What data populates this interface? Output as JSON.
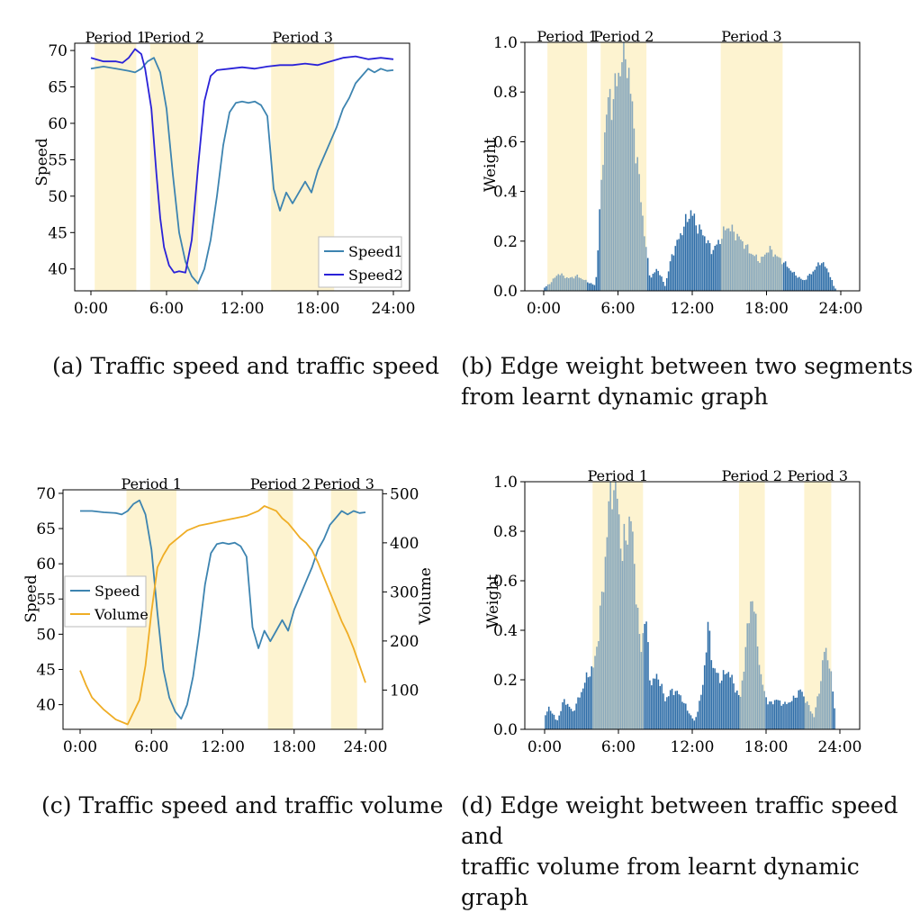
{
  "captions": {
    "a": {
      "label": "(a)",
      "text": "Traffic speed and traffic speed"
    },
    "b": {
      "label": "(b)",
      "line1": "Edge weight between two segments",
      "line2": "from learnt dynamic graph"
    },
    "c": {
      "label": "(c)",
      "text": "Traffic speed and traffic volume"
    },
    "d": {
      "label": "(d)",
      "line1": "Edge weight between traffic speed and",
      "line2": "traffic volume from learnt dynamic graph"
    }
  },
  "colors": {
    "period_band": "#fdf3d0",
    "speed1": "#3d84b0",
    "speed2": "#2a22d8",
    "volume": "#efad25",
    "bar_dark": "#2f6ea8",
    "bar_light": "#88a8bc"
  },
  "chart_data": [
    {
      "id": "a",
      "type": "line",
      "ylabel": "Speed",
      "xlabel": "",
      "xlim": [
        0,
        24
      ],
      "ylim": [
        37,
        71
      ],
      "xticks": [
        "0:00",
        "6:00",
        "12:00",
        "18:00",
        "24:00"
      ],
      "yticks": [
        40,
        45,
        50,
        55,
        60,
        65,
        70
      ],
      "legend_position": "bottom-right",
      "periods": [
        {
          "label": "Period 1",
          "start": 0.3,
          "end": 3.6
        },
        {
          "label": "Period 2",
          "start": 4.7,
          "end": 8.5
        },
        {
          "label": "Period 3",
          "start": 14.3,
          "end": 19.3
        }
      ],
      "series": [
        {
          "name": "Speed1",
          "color_key": "speed1",
          "x": [
            0,
            1,
            2,
            3,
            3.5,
            4,
            4.5,
            5,
            5.5,
            6,
            6.5,
            7,
            7.5,
            8,
            8.5,
            9,
            9.5,
            10,
            10.5,
            11,
            11.5,
            12,
            12.5,
            13,
            13.5,
            14,
            14.5,
            15,
            15.5,
            16,
            16.5,
            17,
            17.5,
            18,
            18.5,
            19,
            19.5,
            20,
            20.5,
            21,
            21.5,
            22,
            22.5,
            23,
            23.5,
            24
          ],
          "y": [
            67.5,
            67.8,
            67.5,
            67.2,
            67.0,
            67.5,
            68.5,
            69.0,
            67.0,
            62.0,
            53.0,
            45.0,
            41.0,
            39.0,
            38.0,
            40.0,
            44.0,
            50.0,
            57.0,
            61.5,
            62.8,
            63.0,
            62.8,
            63.0,
            62.5,
            61.0,
            51.0,
            48.0,
            50.5,
            49.0,
            50.5,
            52.0,
            50.5,
            53.5,
            55.5,
            57.5,
            59.5,
            62.0,
            63.5,
            65.5,
            66.5,
            67.5,
            67.0,
            67.5,
            67.2,
            67.3
          ]
        },
        {
          "name": "Speed2",
          "color_key": "speed2",
          "x": [
            0,
            1,
            2,
            2.5,
            3,
            3.5,
            4,
            4.3,
            4.8,
            5.2,
            5.5,
            5.8,
            6.2,
            6.6,
            7,
            7.5,
            8,
            8.5,
            9,
            9.5,
            10,
            11,
            12,
            13,
            14,
            15,
            16,
            17,
            18,
            19,
            20,
            21,
            22,
            23,
            24
          ],
          "y": [
            69.0,
            68.5,
            68.5,
            68.3,
            69.0,
            70.2,
            69.5,
            67.5,
            62.0,
            53.0,
            47.0,
            43.0,
            40.5,
            39.5,
            39.7,
            39.5,
            44.0,
            54.0,
            63.0,
            66.5,
            67.3,
            67.5,
            67.7,
            67.5,
            67.8,
            68.0,
            68.0,
            68.2,
            68.0,
            68.5,
            69.0,
            69.2,
            68.8,
            69.0,
            68.8
          ]
        }
      ]
    },
    {
      "id": "b",
      "type": "bar",
      "ylabel": "Weight",
      "xlabel": "",
      "xlim": [
        0,
        24
      ],
      "ylim": [
        0,
        1.0
      ],
      "xticks": [
        "0:00",
        "6:00",
        "12:00",
        "18:00",
        "24:00"
      ],
      "yticks": [
        "0.0",
        "0.2",
        "0.4",
        "0.6",
        "0.8",
        "1.0"
      ],
      "periods": [
        {
          "label": "Period 1",
          "start": 0.3,
          "end": 3.5
        },
        {
          "label": "Period 2",
          "start": 4.6,
          "end": 8.3
        },
        {
          "label": "Period 3",
          "start": 14.3,
          "end": 19.3
        }
      ],
      "bar_profile": [
        [
          0,
          0.01
        ],
        [
          0.5,
          0.03
        ],
        [
          1.2,
          0.07
        ],
        [
          2.0,
          0.05
        ],
        [
          2.7,
          0.06
        ],
        [
          3.4,
          0.04
        ],
        [
          4.2,
          0.02
        ],
        [
          4.8,
          0.55
        ],
        [
          5.1,
          0.74
        ],
        [
          5.6,
          0.78
        ],
        [
          6.0,
          0.85
        ],
        [
          6.4,
          0.98
        ],
        [
          6.8,
          0.92
        ],
        [
          7.2,
          0.7
        ],
        [
          7.7,
          0.45
        ],
        [
          8.2,
          0.2
        ],
        [
          8.6,
          0.05
        ],
        [
          9.2,
          0.09
        ],
        [
          9.8,
          0.02
        ],
        [
          10.4,
          0.15
        ],
        [
          11.0,
          0.22
        ],
        [
          11.5,
          0.28
        ],
        [
          11.9,
          0.32
        ],
        [
          12.4,
          0.26
        ],
        [
          13.0,
          0.22
        ],
        [
          13.6,
          0.16
        ],
        [
          14.2,
          0.2
        ],
        [
          14.8,
          0.26
        ],
        [
          15.3,
          0.24
        ],
        [
          16.0,
          0.2
        ],
        [
          16.8,
          0.15
        ],
        [
          17.5,
          0.12
        ],
        [
          18.2,
          0.17
        ],
        [
          18.8,
          0.14
        ],
        [
          19.5,
          0.11
        ],
        [
          20.2,
          0.07
        ],
        [
          21.0,
          0.04
        ],
        [
          21.8,
          0.08
        ],
        [
          22.4,
          0.12
        ],
        [
          23.0,
          0.08
        ],
        [
          23.5,
          0.01
        ]
      ]
    },
    {
      "id": "c",
      "type": "line",
      "ylabel": "Speed",
      "y2label": "Volume",
      "xlabel": "",
      "xlim": [
        0,
        24
      ],
      "ylim": [
        36.5,
        70.5
      ],
      "y2lim": [
        20,
        508
      ],
      "xticks": [
        "0:00",
        "6:00",
        "12:00",
        "18:00",
        "24:00"
      ],
      "yticks": [
        40,
        45,
        50,
        55,
        60,
        65,
        70
      ],
      "y2ticks": [
        100,
        200,
        300,
        400,
        500
      ],
      "legend_position": "center-left",
      "periods": [
        {
          "label": "Period 1",
          "start": 3.9,
          "end": 8.1
        },
        {
          "label": "Period 2",
          "start": 15.8,
          "end": 17.9
        },
        {
          "label": "Period 3",
          "start": 21.1,
          "end": 23.3
        }
      ],
      "series": [
        {
          "name": "Speed",
          "color_key": "speed1",
          "axis": "left",
          "x": [
            0,
            1,
            2,
            3,
            3.5,
            4,
            4.5,
            5,
            5.5,
            6,
            6.5,
            7,
            7.5,
            8,
            8.5,
            9,
            9.5,
            10,
            10.5,
            11,
            11.5,
            12,
            12.5,
            13,
            13.5,
            14,
            14.5,
            15,
            15.5,
            16,
            16.5,
            17,
            17.5,
            18,
            18.5,
            19,
            19.5,
            20,
            20.5,
            21,
            21.5,
            22,
            22.5,
            23,
            23.5,
            24
          ],
          "y": [
            67.5,
            67.5,
            67.3,
            67.2,
            67.0,
            67.5,
            68.5,
            69.0,
            67.0,
            62.0,
            53.0,
            45.0,
            41.0,
            39.0,
            38.0,
            40.0,
            44.0,
            50.0,
            57.0,
            61.5,
            62.8,
            63.0,
            62.8,
            63.0,
            62.5,
            61.0,
            51.0,
            48.0,
            50.5,
            49.0,
            50.5,
            52.0,
            50.5,
            53.5,
            55.5,
            57.5,
            59.5,
            62.0,
            63.5,
            65.5,
            66.5,
            67.5,
            67.0,
            67.5,
            67.2,
            67.3
          ]
        },
        {
          "name": "Volume",
          "color_key": "volume",
          "axis": "right",
          "x": [
            0,
            0.5,
            1,
            2,
            3,
            4,
            4.5,
            5,
            5.5,
            6,
            6.5,
            7,
            7.5,
            8,
            9,
            10,
            11,
            12,
            13,
            14,
            14.5,
            15,
            15.5,
            16,
            16.5,
            17,
            17.5,
            18,
            18.5,
            19,
            19.5,
            20,
            20.5,
            21,
            21.5,
            22,
            22.5,
            23,
            23.5,
            24
          ],
          "y": [
            140,
            110,
            85,
            60,
            40,
            30,
            55,
            80,
            150,
            260,
            350,
            375,
            395,
            405,
            425,
            435,
            440,
            445,
            450,
            455,
            460,
            465,
            475,
            470,
            465,
            450,
            440,
            425,
            410,
            400,
            385,
            360,
            330,
            300,
            270,
            240,
            215,
            185,
            150,
            115
          ]
        }
      ]
    },
    {
      "id": "d",
      "type": "bar",
      "ylabel": "Weight",
      "xlabel": "",
      "xlim": [
        0,
        24
      ],
      "ylim": [
        0,
        1.0
      ],
      "xticks": [
        "0:00",
        "6:00",
        "12:00",
        "18:00",
        "24:00"
      ],
      "yticks": [
        "0.0",
        "0.2",
        "0.4",
        "0.6",
        "0.8",
        "1.0"
      ],
      "periods": [
        {
          "label": "Period 1",
          "start": 3.9,
          "end": 8.0
        },
        {
          "label": "Period 2",
          "start": 15.8,
          "end": 17.9
        },
        {
          "label": "Period 3",
          "start": 21.1,
          "end": 23.3
        }
      ],
      "bar_profile": [
        [
          0,
          0.05
        ],
        [
          0.4,
          0.09
        ],
        [
          1.0,
          0.03
        ],
        [
          1.6,
          0.12
        ],
        [
          2.3,
          0.07
        ],
        [
          2.9,
          0.14
        ],
        [
          3.5,
          0.22
        ],
        [
          4.0,
          0.25
        ],
        [
          4.4,
          0.4
        ],
        [
          4.8,
          0.6
        ],
        [
          5.2,
          0.88
        ],
        [
          5.5,
          1.0
        ],
        [
          5.9,
          0.95
        ],
        [
          6.3,
          0.7
        ],
        [
          6.7,
          0.8
        ],
        [
          7.0,
          0.86
        ],
        [
          7.4,
          0.6
        ],
        [
          7.8,
          0.3
        ],
        [
          8.2,
          0.48
        ],
        [
          8.6,
          0.18
        ],
        [
          9.2,
          0.22
        ],
        [
          9.8,
          0.12
        ],
        [
          10.4,
          0.16
        ],
        [
          11.0,
          0.14
        ],
        [
          11.6,
          0.08
        ],
        [
          12.2,
          0.03
        ],
        [
          12.8,
          0.15
        ],
        [
          13.3,
          0.42
        ],
        [
          13.7,
          0.25
        ],
        [
          14.3,
          0.2
        ],
        [
          14.9,
          0.24
        ],
        [
          15.4,
          0.18
        ],
        [
          15.9,
          0.12
        ],
        [
          16.4,
          0.35
        ],
        [
          16.8,
          0.55
        ],
        [
          17.2,
          0.42
        ],
        [
          17.6,
          0.2
        ],
        [
          18.2,
          0.1
        ],
        [
          18.8,
          0.12
        ],
        [
          19.5,
          0.1
        ],
        [
          20.2,
          0.12
        ],
        [
          20.8,
          0.16
        ],
        [
          21.4,
          0.1
        ],
        [
          21.9,
          0.05
        ],
        [
          22.4,
          0.18
        ],
        [
          22.8,
          0.34
        ],
        [
          23.2,
          0.25
        ],
        [
          23.6,
          0.08
        ],
        [
          24.0,
          0.08
        ]
      ]
    }
  ]
}
